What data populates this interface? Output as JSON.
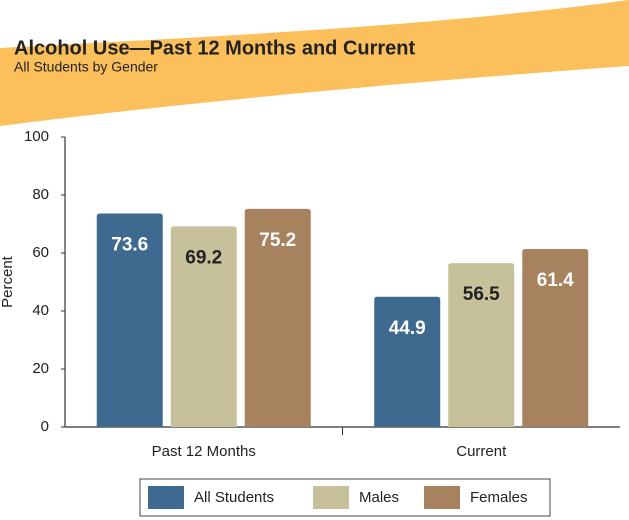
{
  "chart_data": {
    "type": "bar",
    "title": "Alcohol Use—Past 12 Months and Current",
    "subtitle": "All Students by Gender",
    "y_label": "Percent",
    "categories": [
      "Past 12 Months",
      "Current"
    ],
    "series": [
      {
        "name": "All Students",
        "color": "#3d6a8e",
        "values": [
          73.6,
          44.9
        ]
      },
      {
        "name": "Males",
        "color": "#c6c19b",
        "values": [
          69.2,
          56.5
        ]
      },
      {
        "name": "Females",
        "color": "#a6825f",
        "values": [
          75.2,
          61.4
        ]
      }
    ],
    "ylim": [
      0,
      100
    ],
    "yticks": [
      0,
      20,
      40,
      60,
      80,
      100
    ],
    "grid": false
  }
}
